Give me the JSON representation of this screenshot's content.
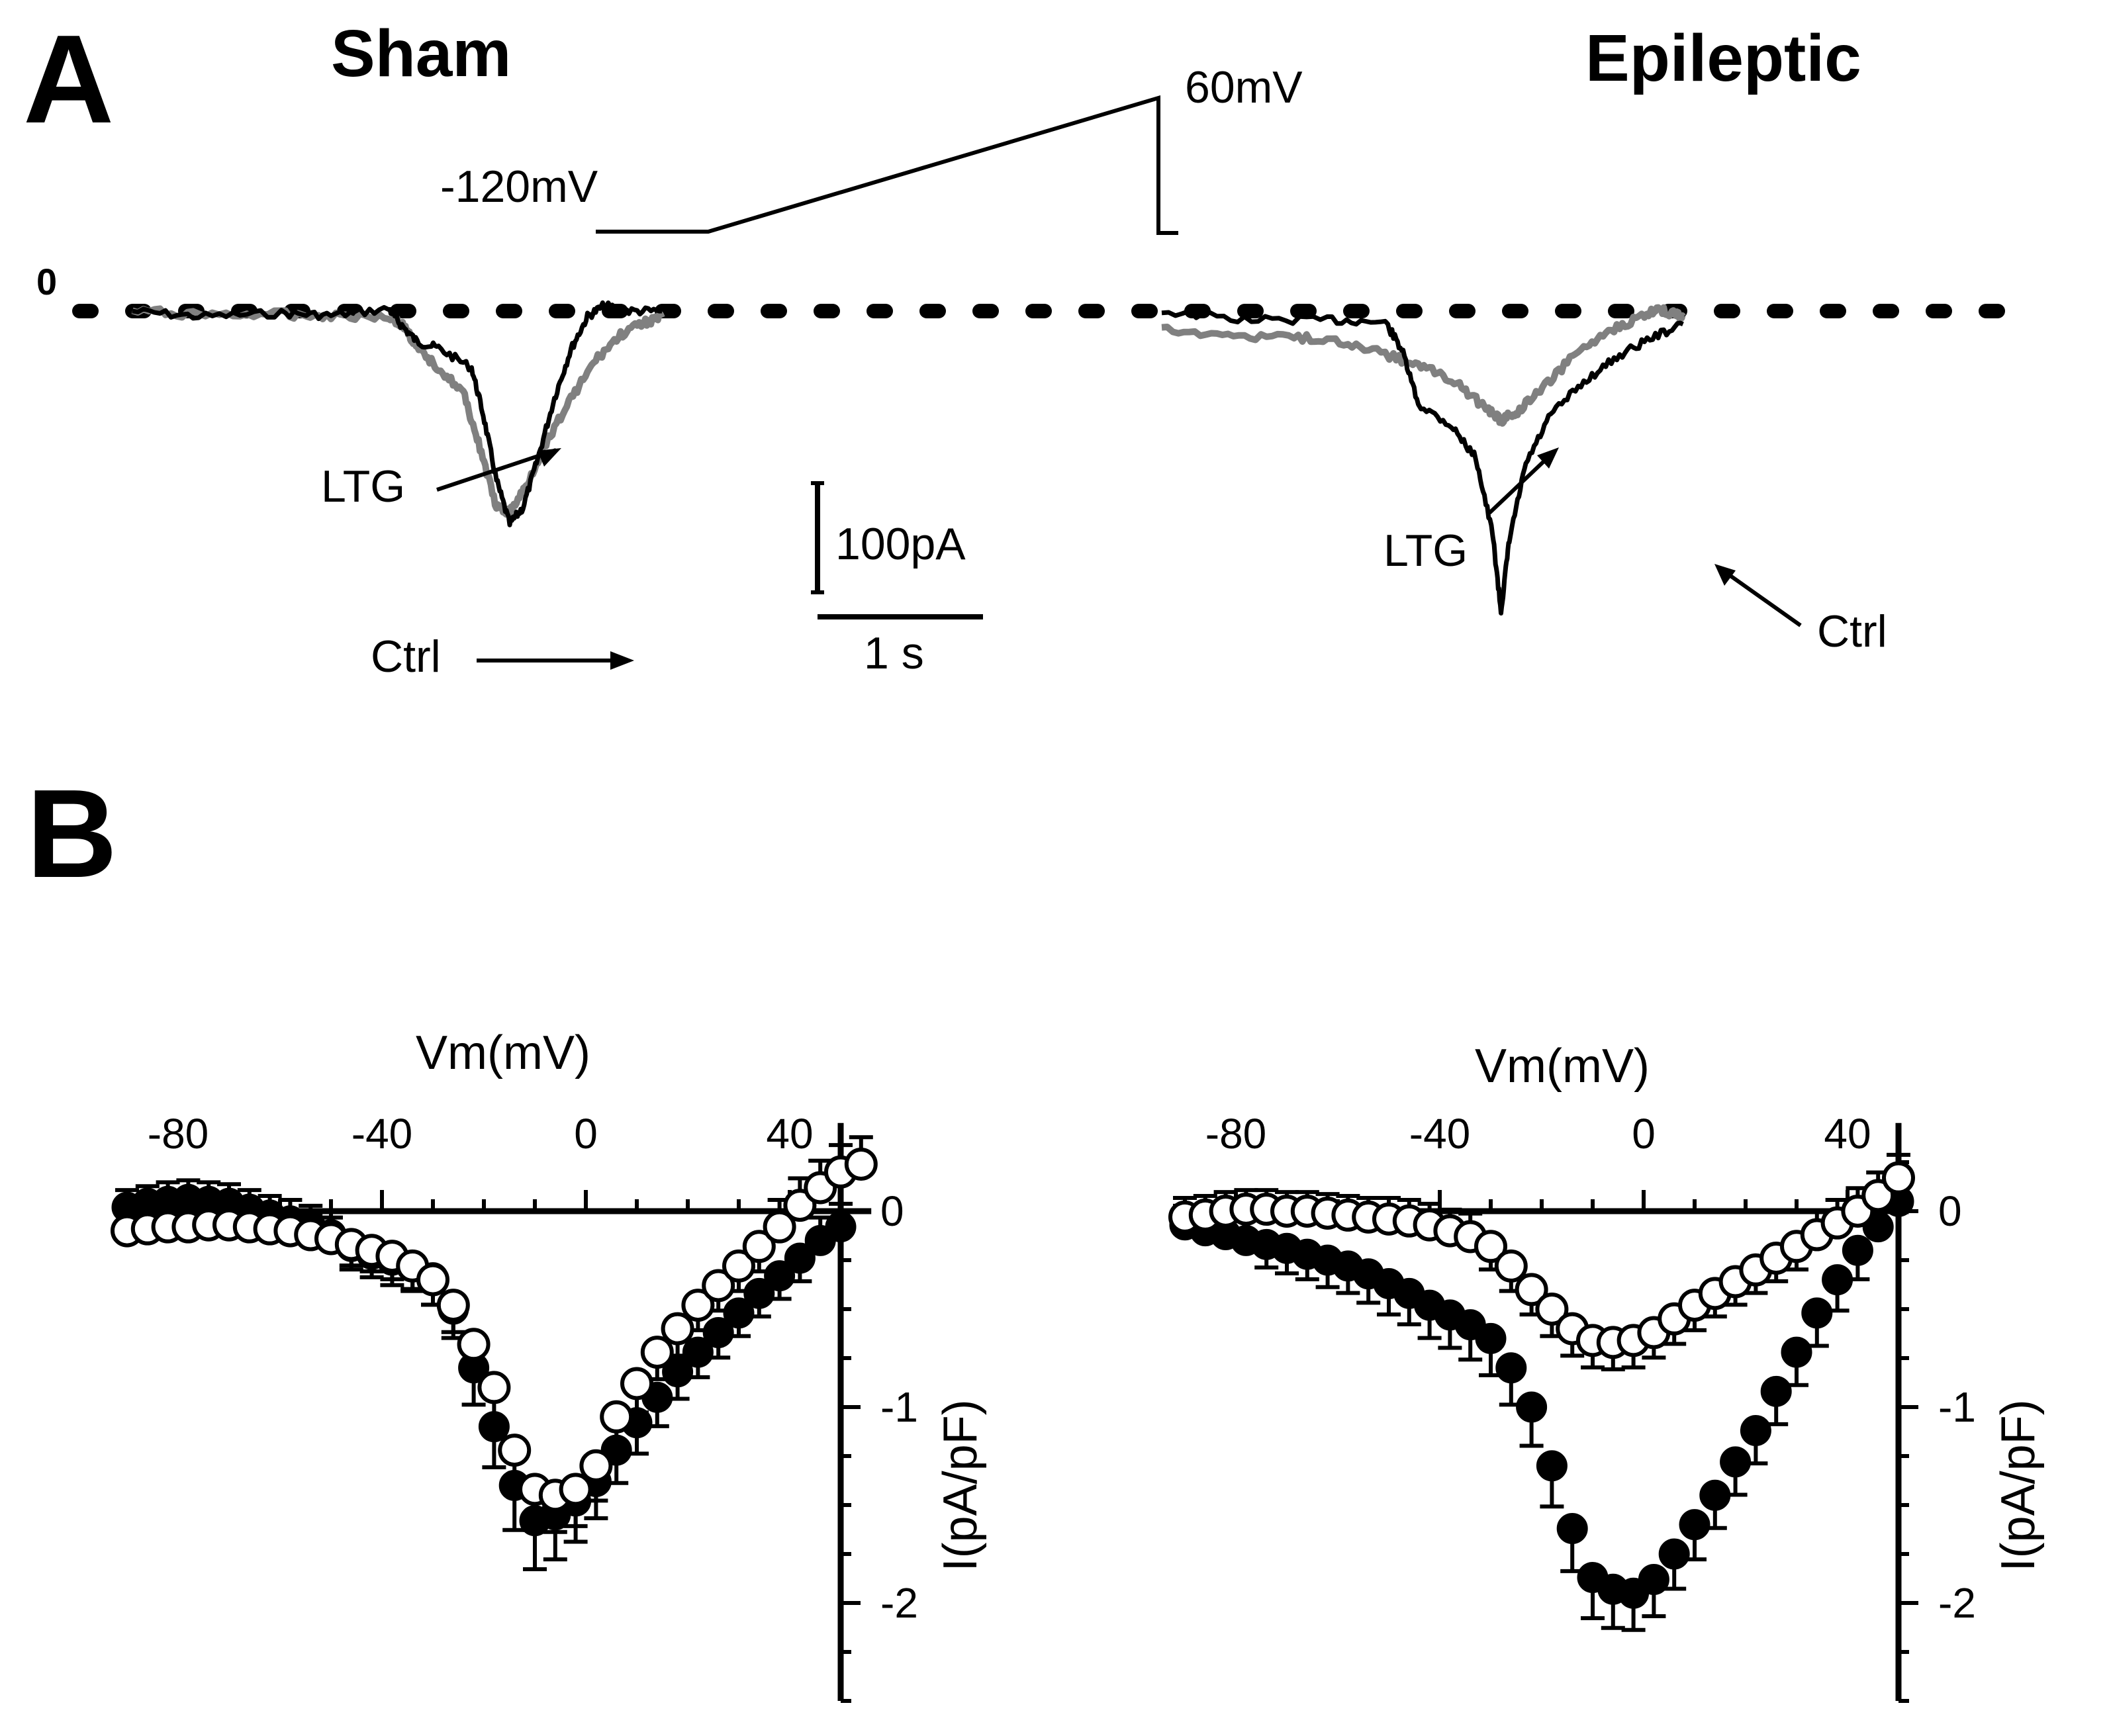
{
  "figure": {
    "panel_a_label": "A",
    "panel_b_label": "B",
    "condition_left": "Sham",
    "condition_right": "Epileptic",
    "protocol_start": "-120mV",
    "protocol_end": "60mV",
    "zero_label": "0",
    "scale_current": "100pA",
    "scale_time": "1 s",
    "sham_ltg_label": "LTG",
    "sham_ctrl_label": "Ctrl",
    "epi_ltg_label": "LTG",
    "epi_ctrl_label": "Ctrl"
  },
  "colors": {
    "ctrl_trace": "#000000",
    "ltg_trace": "#808080",
    "ctrl_marker": "#000000",
    "ltg_marker": "#ffffff"
  },
  "chart_data": [
    {
      "name": "sham-traces",
      "type": "line",
      "title": "Sham",
      "x_unit": "s",
      "y_unit": "pA",
      "series": [
        {
          "name": "Ctrl",
          "points": [
            [
              0,
              0
            ],
            [
              0.4,
              -5
            ],
            [
              0.9,
              -2
            ],
            [
              1.2,
              -4
            ],
            [
              1.55,
              2
            ],
            [
              1.62,
              -12
            ],
            [
              1.72,
              -28
            ],
            [
              1.85,
              -34
            ],
            [
              2.05,
              -52
            ],
            [
              2.12,
              -95
            ],
            [
              2.2,
              -155
            ],
            [
              2.28,
              -195
            ],
            [
              2.36,
              -180
            ],
            [
              2.45,
              -135
            ],
            [
              2.55,
              -80
            ],
            [
              2.65,
              -35
            ],
            [
              2.75,
              -5
            ],
            [
              2.85,
              5
            ],
            [
              3.0,
              0
            ],
            [
              3.2,
              0
            ]
          ]
        },
        {
          "name": "LTG",
          "points": [
            [
              0,
              0
            ],
            [
              0.4,
              -3
            ],
            [
              0.9,
              -3
            ],
            [
              1.2,
              -4
            ],
            [
              1.55,
              -5
            ],
            [
              1.65,
              -15
            ],
            [
              1.72,
              -35
            ],
            [
              1.85,
              -52
            ],
            [
              2.0,
              -75
            ],
            [
              2.1,
              -125
            ],
            [
              2.2,
              -180
            ],
            [
              2.28,
              -185
            ],
            [
              2.38,
              -160
            ],
            [
              2.5,
              -120
            ],
            [
              2.65,
              -80
            ],
            [
              2.8,
              -45
            ],
            [
              2.95,
              -22
            ],
            [
              3.1,
              -10
            ],
            [
              3.2,
              -6
            ]
          ]
        }
      ]
    },
    {
      "name": "epileptic-traces",
      "type": "line",
      "title": "Epileptic",
      "x_unit": "s",
      "y_unit": "pA",
      "series": [
        {
          "name": "Ctrl",
          "points": [
            [
              0,
              0
            ],
            [
              0.5,
              -8
            ],
            [
              1.0,
              -8
            ],
            [
              1.35,
              -10
            ],
            [
              1.45,
              -35
            ],
            [
              1.55,
              -85
            ],
            [
              1.75,
              -105
            ],
            [
              1.9,
              -135
            ],
            [
              2.0,
              -205
            ],
            [
              2.05,
              -275
            ],
            [
              2.1,
              -210
            ],
            [
              2.2,
              -140
            ],
            [
              2.35,
              -95
            ],
            [
              2.55,
              -65
            ],
            [
              2.75,
              -42
            ],
            [
              2.95,
              -25
            ],
            [
              3.15,
              -12
            ]
          ]
        },
        {
          "name": "LTG",
          "points": [
            [
              0,
              -15
            ],
            [
              0.4,
              -22
            ],
            [
              0.8,
              -24
            ],
            [
              1.1,
              -28
            ],
            [
              1.4,
              -42
            ],
            [
              1.6,
              -52
            ],
            [
              1.8,
              -68
            ],
            [
              1.95,
              -88
            ],
            [
              2.05,
              -100
            ],
            [
              2.15,
              -92
            ],
            [
              2.3,
              -70
            ],
            [
              2.5,
              -40
            ],
            [
              2.7,
              -18
            ],
            [
              2.9,
              -5
            ],
            [
              3.0,
              2
            ],
            [
              3.1,
              -3
            ],
            [
              3.15,
              -5
            ]
          ]
        }
      ]
    },
    {
      "name": "sham-iv",
      "type": "scatter",
      "xlabel": "Vm(mV)",
      "ylabel": "I(pA/pF)",
      "xlim": [
        -92,
        56
      ],
      "ylim": [
        -2.5,
        0.45
      ],
      "xticks": [
        -80,
        -40,
        0,
        40
      ],
      "yticks": [
        0,
        -1,
        -2
      ],
      "series": [
        {
          "name": "Ctrl",
          "fill": "filled",
          "x": [
            -90,
            -86,
            -82,
            -78,
            -74,
            -70,
            -66,
            -62,
            -58,
            -54,
            -50,
            -46,
            -42,
            -38,
            -34,
            -30,
            -26,
            -22,
            -18,
            -14,
            -10,
            -6,
            -2,
            2,
            6,
            10,
            14,
            18,
            22,
            26,
            30,
            34,
            38,
            42,
            46,
            50
          ],
          "y": [
            0.02,
            0.04,
            0.05,
            0.06,
            0.05,
            0.04,
            0.01,
            -0.02,
            -0.05,
            -0.08,
            -0.12,
            -0.18,
            -0.22,
            -0.25,
            -0.28,
            -0.34,
            -0.5,
            -0.8,
            -1.1,
            -1.4,
            -1.58,
            -1.55,
            -1.48,
            -1.38,
            -1.22,
            -1.08,
            -0.95,
            -0.82,
            -0.72,
            -0.62,
            -0.52,
            -0.42,
            -0.33,
            -0.24,
            -0.15,
            -0.08
          ],
          "err": [
            0.02,
            0.02,
            0.03,
            0.03,
            0.03,
            0.03,
            0.03,
            0.03,
            0.04,
            0.04,
            0.05,
            0.05,
            0.05,
            0.06,
            0.06,
            0.07,
            0.08,
            0.12,
            0.14,
            0.16,
            0.18,
            0.16,
            0.14,
            0.12,
            0.1,
            0.09,
            0.08,
            0.07,
            0.06,
            0.06,
            0.05,
            0.05,
            0.05,
            0.05,
            0.05,
            0.05
          ]
        },
        {
          "name": "LTG",
          "fill": "open",
          "x": [
            -90,
            -86,
            -82,
            -78,
            -74,
            -70,
            -66,
            -62,
            -58,
            -54,
            -50,
            -46,
            -42,
            -38,
            -34,
            -30,
            -26,
            -22,
            -18,
            -14,
            -10,
            -6,
            -2,
            2,
            6,
            10,
            14,
            18,
            22,
            26,
            30,
            34,
            38,
            42,
            46,
            50,
            54
          ],
          "y": [
            -0.1,
            -0.09,
            -0.08,
            -0.08,
            -0.07,
            -0.07,
            -0.08,
            -0.09,
            -0.1,
            -0.12,
            -0.14,
            -0.17,
            -0.2,
            -0.23,
            -0.28,
            -0.35,
            -0.48,
            -0.68,
            -0.9,
            -1.22,
            -1.42,
            -1.45,
            -1.42,
            -1.3,
            -1.05,
            -0.88,
            -0.72,
            -0.6,
            -0.48,
            -0.38,
            -0.28,
            -0.18,
            -0.08,
            0.03,
            0.12,
            0.2,
            0.24
          ],
          "err": [
            0.03,
            0.03,
            0.03,
            0.03,
            0.03,
            0.03,
            0.03,
            0.03,
            0.03,
            0.03,
            0.04,
            0.04,
            0.04,
            0.05,
            0.05,
            0.06,
            0.07,
            0.09,
            0.11,
            0.13,
            0.14,
            0.12,
            0.12,
            0.11,
            0.09,
            0.08,
            0.07,
            0.07,
            0.06,
            0.06,
            0.06,
            0.06,
            0.07,
            0.07,
            0.07,
            0.07,
            0.07
          ]
        }
      ]
    },
    {
      "name": "epileptic-iv",
      "type": "scatter",
      "xlabel": "Vm(mV)",
      "ylabel": "I(pA/pF)",
      "xlim": [
        -92,
        52
      ],
      "ylim": [
        -2.5,
        0.45
      ],
      "xticks": [
        -80,
        -40,
        0,
        40
      ],
      "yticks": [
        0,
        -1,
        -2
      ],
      "series": [
        {
          "name": "Ctrl",
          "fill": "filled",
          "x": [
            -90,
            -86,
            -82,
            -78,
            -74,
            -70,
            -66,
            -62,
            -58,
            -54,
            -50,
            -46,
            -42,
            -38,
            -34,
            -30,
            -26,
            -22,
            -18,
            -14,
            -10,
            -6,
            -2,
            2,
            6,
            10,
            14,
            18,
            22,
            26,
            30,
            34,
            38,
            42,
            46,
            50
          ],
          "y": [
            -0.07,
            -0.1,
            -0.12,
            -0.15,
            -0.17,
            -0.19,
            -0.22,
            -0.25,
            -0.28,
            -0.32,
            -0.37,
            -0.42,
            -0.48,
            -0.53,
            -0.58,
            -0.65,
            -0.8,
            -1.0,
            -1.3,
            -1.62,
            -1.87,
            -1.93,
            -1.95,
            -1.88,
            -1.75,
            -1.6,
            -1.45,
            -1.28,
            -1.12,
            -0.92,
            -0.72,
            -0.52,
            -0.35,
            -0.2,
            -0.08,
            0.05
          ],
          "err": [
            0.03,
            0.04,
            0.04,
            0.05,
            0.05,
            0.06,
            0.06,
            0.07,
            0.07,
            0.08,
            0.09,
            0.09,
            0.1,
            0.1,
            0.11,
            0.12,
            0.12,
            0.13,
            0.14,
            0.15,
            0.14,
            0.13,
            0.12,
            0.12,
            0.11,
            0.11,
            0.1,
            0.1,
            0.1,
            0.1,
            0.1,
            0.1,
            0.09,
            0.08,
            0.07,
            0.06
          ]
        },
        {
          "name": "LTG",
          "fill": "open",
          "x": [
            -90,
            -86,
            -82,
            -78,
            -74,
            -70,
            -66,
            -62,
            -58,
            -54,
            -50,
            -46,
            -42,
            -38,
            -34,
            -30,
            -26,
            -22,
            -18,
            -14,
            -10,
            -6,
            -2,
            2,
            6,
            10,
            14,
            18,
            22,
            26,
            30,
            34,
            38,
            42,
            46,
            50
          ],
          "y": [
            -0.03,
            -0.02,
            0.0,
            0.01,
            0.01,
            0.0,
            0.0,
            -0.01,
            -0.02,
            -0.03,
            -0.04,
            -0.05,
            -0.07,
            -0.1,
            -0.13,
            -0.18,
            -0.28,
            -0.4,
            -0.5,
            -0.6,
            -0.66,
            -0.67,
            -0.66,
            -0.62,
            -0.55,
            -0.48,
            -0.42,
            -0.36,
            -0.3,
            -0.24,
            -0.18,
            -0.12,
            -0.06,
            0.0,
            0.08,
            0.17
          ],
          "err": [
            0.03,
            0.03,
            0.03,
            0.03,
            0.03,
            0.03,
            0.03,
            0.03,
            0.03,
            0.03,
            0.04,
            0.04,
            0.04,
            0.04,
            0.05,
            0.05,
            0.06,
            0.06,
            0.07,
            0.07,
            0.07,
            0.07,
            0.07,
            0.06,
            0.06,
            0.06,
            0.05,
            0.05,
            0.05,
            0.05,
            0.05,
            0.05,
            0.05,
            0.05,
            0.05,
            0.05
          ]
        }
      ]
    }
  ]
}
